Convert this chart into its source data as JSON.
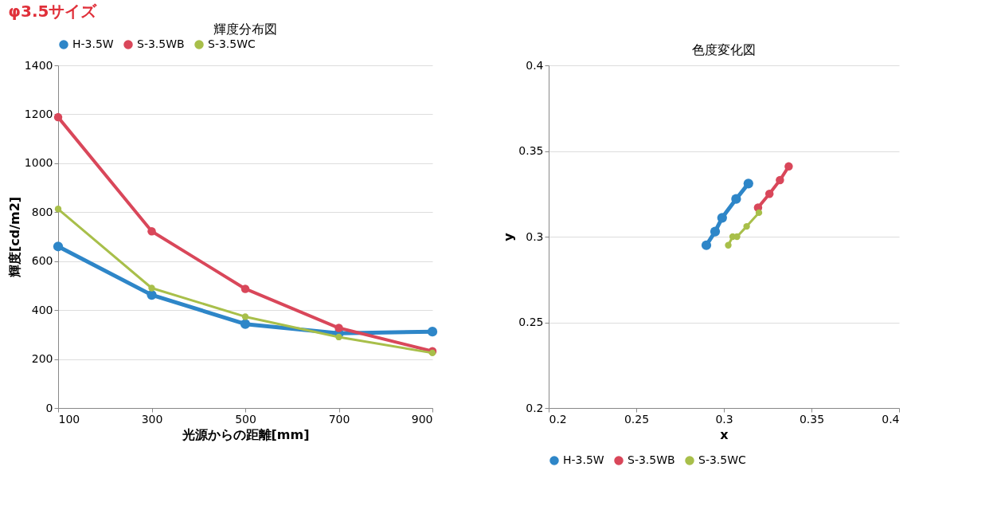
{
  "chart_data": [
    {
      "type": "line",
      "title": "輝度分布図",
      "annotations": [
        "φ3.5サイズ"
      ],
      "xlabel": "光源からの距離[mm]",
      "ylabel": "輝度[cd/m2]",
      "x": [
        100,
        300,
        500,
        700,
        900
      ],
      "xlim": [
        100,
        900
      ],
      "xticks": [
        100,
        300,
        500,
        700,
        900
      ],
      "ylim": [
        0,
        1400
      ],
      "yticks": [
        0,
        200,
        400,
        600,
        800,
        1000,
        1200,
        1400
      ],
      "grid": "y",
      "legend": "top",
      "marker": "circle",
      "series": [
        {
          "name": "H-3.5W",
          "color": "#2e86c8",
          "values": [
            660,
            462,
            343,
            305,
            312
          ]
        },
        {
          "name": "S-3.5WB",
          "color": "#d9475a",
          "values": [
            1188,
            722,
            487,
            327,
            232
          ]
        },
        {
          "name": "S-3.5WC",
          "color": "#a8bf4a",
          "values": [
            813,
            490,
            373,
            290,
            225
          ]
        }
      ]
    },
    {
      "type": "line",
      "title": "色度変化図",
      "xlabel": "x",
      "ylabel": "y",
      "xlim": [
        0.2,
        0.4
      ],
      "xticks": [
        0.2,
        0.25,
        0.3,
        0.35,
        0.4
      ],
      "ylim": [
        0.2,
        0.4
      ],
      "yticks": [
        0.2,
        0.25,
        0.3,
        0.35,
        0.4
      ],
      "grid": "y",
      "legend": "bottom",
      "marker": "circle",
      "series": [
        {
          "name": "H-3.5W",
          "color": "#2e86c8",
          "x": [
            0.29,
            0.295,
            0.299,
            0.307,
            0.314
          ],
          "values": [
            0.295,
            0.303,
            0.311,
            0.322,
            0.331
          ]
        },
        {
          "name": "S-3.5WB",
          "color": "#d9475a",
          "x": [
            0.3195,
            0.326,
            0.332,
            0.337
          ],
          "values": [
            0.317,
            0.325,
            0.333,
            0.341
          ]
        },
        {
          "name": "S-3.5WC",
          "color": "#a8bf4a",
          "x": [
            0.3025,
            0.305,
            0.3075,
            0.313,
            0.32
          ],
          "values": [
            0.295,
            0.3,
            0.3,
            0.306,
            0.314
          ]
        }
      ]
    }
  ]
}
